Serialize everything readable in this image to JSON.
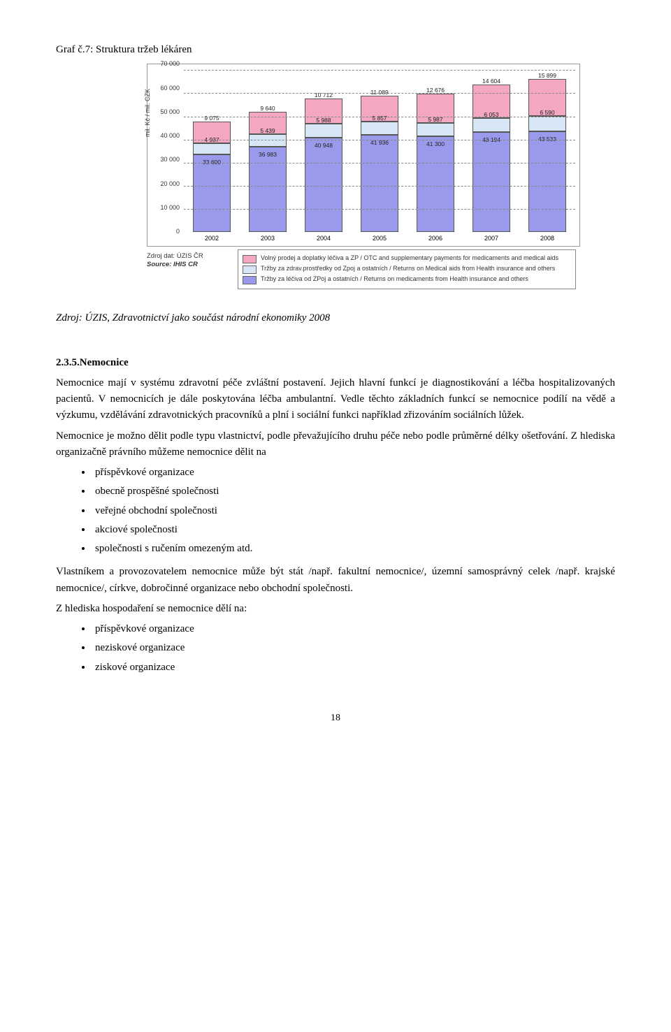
{
  "chartTitle": "Graf č.7: Struktura tržeb lékáren",
  "chart": {
    "type": "stacked-bar",
    "yMax": 70000,
    "yTicks": [
      0,
      10000,
      20000,
      30000,
      40000,
      50000,
      60000,
      70000
    ],
    "yTickLabels": [
      "0",
      "10 000",
      "20 000",
      "30 000",
      "40 000",
      "50 000",
      "60 000",
      "70 000"
    ],
    "yAxisLabel": "mil. Kč / mil. CZK",
    "categories": [
      "2002",
      "2003",
      "2004",
      "2005",
      "2006",
      "2007",
      "2008"
    ],
    "series": {
      "bottom": {
        "color": "#9a9aed",
        "values": [
          33600,
          36983,
          40948,
          41936,
          41300,
          43194,
          43533
        ]
      },
      "middle": {
        "color": "#d7e6f5",
        "values": [
          4937,
          5439,
          5988,
          5857,
          5987,
          6053,
          6590
        ]
      },
      "top": {
        "color": "#f3a7c3",
        "values": [
          9075,
          9640,
          10712,
          11089,
          12676,
          14604,
          15899
        ]
      }
    },
    "sourceLabel1": "Zdroj dat: ÚZIS ČR",
    "sourceLabel2": "Source: IHIS CR",
    "legend": [
      "Volný prodej a doplatky léčiva a ZP / OTC and supplementary payments for medicaments and medical aids",
      "Tržby za zdrav.prostředky od Zpoj a ostatních  / Returns on Medical aids from Health insurance and others",
      "Tržby za léčiva od ZPoj a ostatních / Returns on medicaments from Health insurance and others"
    ]
  },
  "sourceLine": "Zdroj: ÚZIS, Zdravotnictví jako součást národní ekonomiky 2008",
  "sectionHead": "2.3.5.Nemocnice",
  "para1": "Nemocnice mají v systému zdravotní péče zvláštní postavení. Jejich hlavní funkcí je diagnostikování a léčba hospitalizovaných pacientů. V nemocnicích je dále poskytována léčba ambulantní. Vedle těchto základních funkcí se nemocnice podílí na vědě a výzkumu, vzdělávání zdravotnických pracovníků a plní i sociální funkci například zřizováním sociálních lůžek.",
  "para2": "Nemocnice je možno dělit podle typu vlastnictví, podle převažujícího druhu péče nebo podle průměrné délky ošetřování. Z hlediska organizačně právního můžeme nemocnice dělit na",
  "list1": [
    "příspěvkové organizace",
    "obecně prospěšné společnosti",
    "veřejné obchodní společnosti",
    "akciové společnosti",
    "společnosti s ručením omezeným atd."
  ],
  "para3": "Vlastníkem a provozovatelem nemocnice může být stát /např. fakultní nemocnice/, územní samosprávný celek /např. krajské nemocnice/, církve, dobročinné organizace nebo obchodní společnosti.",
  "para4": "Z hlediska hospodaření se nemocnice dělí na:",
  "list2": [
    "příspěvkové organizace",
    "neziskové organizace",
    "ziskové organizace"
  ],
  "pageNumber": "18"
}
